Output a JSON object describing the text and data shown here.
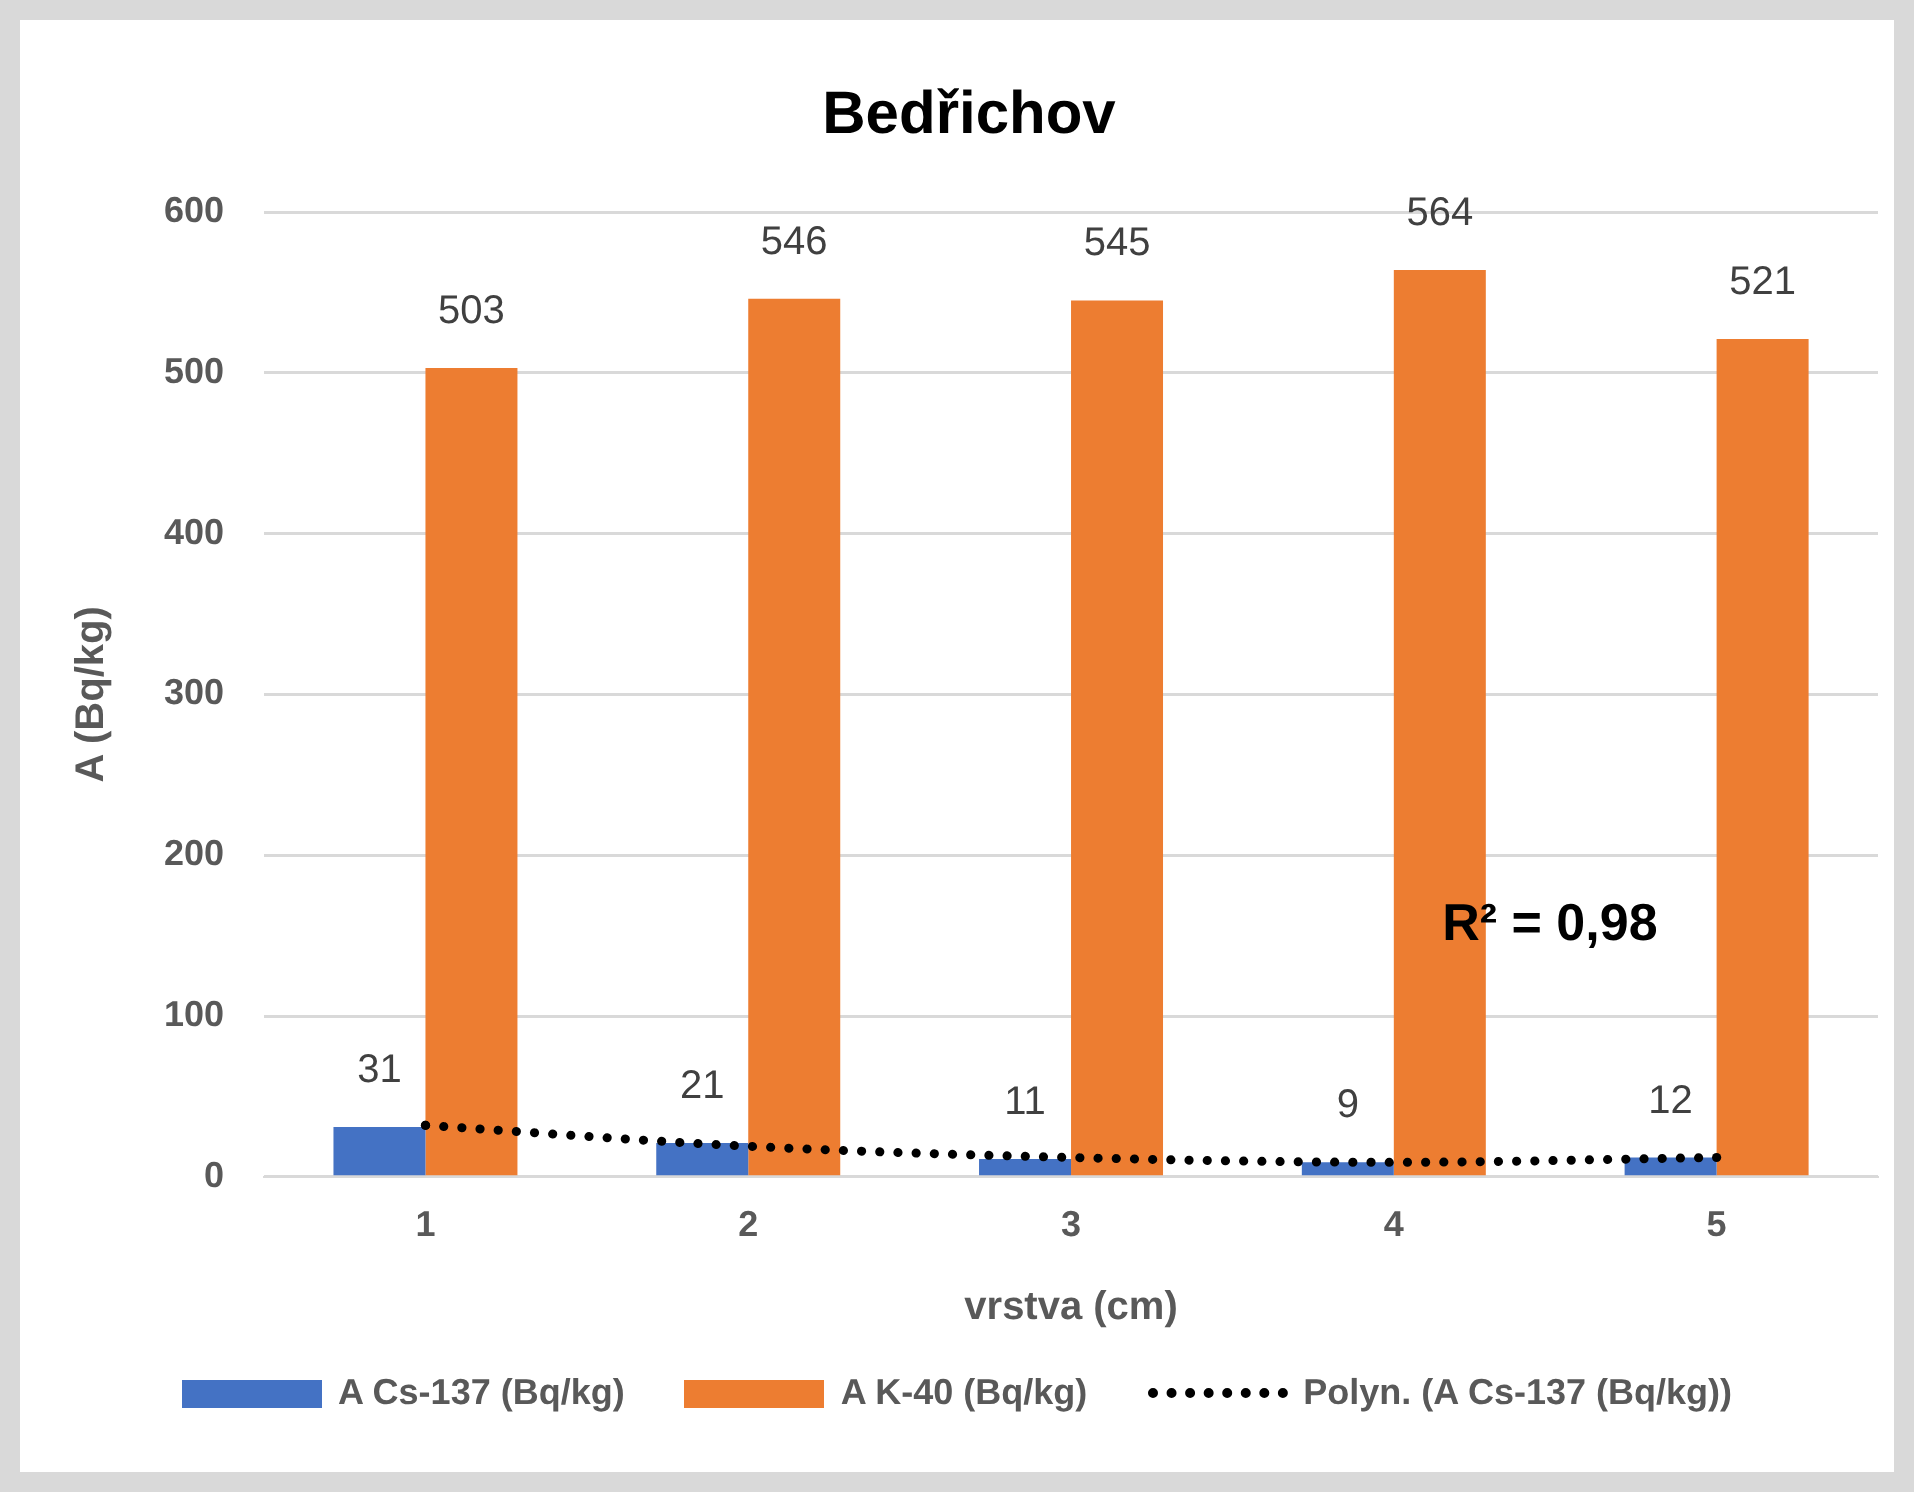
{
  "chart_data": {
    "type": "bar",
    "title": "Bedřichov",
    "xlabel": "vrstva (cm)",
    "ylabel": "A (Bq/kg)",
    "categories": [
      "1",
      "2",
      "3",
      "4",
      "5"
    ],
    "series": [
      {
        "name": "A Cs-137 (Bq/kg)",
        "color": "#4472c4",
        "values": [
          31,
          21,
          11,
          9,
          12
        ],
        "value_labels": [
          "31",
          "21",
          "11",
          "9",
          "12"
        ]
      },
      {
        "name": "A K-40 (Bq/kg)",
        "color": "#ed7d31",
        "values": [
          503,
          546,
          545,
          564,
          521
        ],
        "value_labels": [
          "503",
          "546",
          "545",
          "564",
          "521"
        ]
      },
      {
        "name": "Polyn. (A Cs-137 (Bq/kg))",
        "type": "line",
        "color": "#000000",
        "line_style": "dotted",
        "values": [
          32,
          19,
          12,
          9,
          12
        ]
      }
    ],
    "ylim": [
      0,
      600
    ],
    "yticks": [
      0,
      100,
      200,
      300,
      400,
      500,
      600
    ],
    "grid": "y",
    "legend": "bottom",
    "annotations": [
      "R² = 0,98"
    ]
  }
}
